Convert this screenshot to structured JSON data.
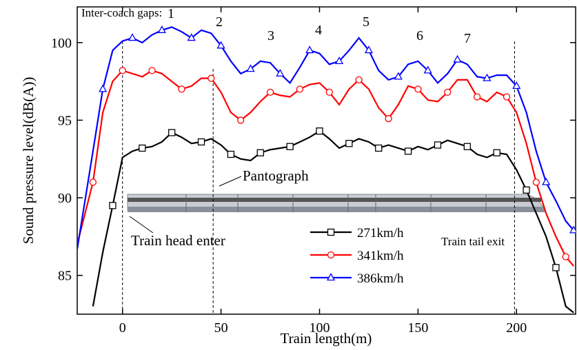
{
  "chart_data": {
    "type": "line",
    "x_label": "Train length(m)",
    "y_label": "Sound pressure level(dB(A))",
    "annotations": {
      "gaps": "Inter-coach gaps:",
      "gap_numbers": [
        "1",
        "2",
        "3",
        "4",
        "5",
        "6",
        "7"
      ],
      "pantograph": "Pantograph",
      "head": "Train head enter",
      "tail": "Train tail exit"
    },
    "x": [
      -23,
      -15,
      -10,
      -5,
      0,
      5,
      10,
      15,
      20,
      25,
      30,
      35,
      40,
      45,
      50,
      55,
      60,
      65,
      70,
      75,
      80,
      85,
      90,
      95,
      100,
      105,
      110,
      115,
      120,
      125,
      130,
      135,
      140,
      145,
      150,
      155,
      160,
      165,
      170,
      175,
      180,
      185,
      190,
      195,
      200,
      205,
      210,
      215,
      220,
      225,
      229
    ],
    "series": [
      {
        "name": "271km/h",
        "color": "#000000",
        "marker": "square",
        "values": [
          null,
          83.0,
          86.5,
          89.5,
          92.6,
          93.0,
          93.2,
          93.3,
          93.6,
          94.2,
          93.9,
          93.5,
          93.6,
          93.8,
          93.4,
          92.8,
          92.5,
          92.4,
          92.9,
          93.1,
          93.2,
          93.3,
          93.6,
          93.9,
          94.3,
          93.8,
          93.2,
          93.5,
          93.8,
          93.6,
          93.2,
          93.4,
          93.2,
          93.0,
          93.3,
          93.1,
          93.4,
          93.7,
          93.5,
          93.3,
          92.8,
          92.6,
          92.9,
          92.8,
          91.8,
          90.5,
          89.0,
          87.5,
          85.5,
          83.0,
          82.6
        ]
      },
      {
        "name": "341km/h",
        "color": "#ff0000",
        "marker": "circle",
        "values": [
          87.0,
          91.0,
          95.5,
          97.5,
          98.2,
          98.0,
          97.8,
          98.2,
          98.0,
          97.5,
          97.0,
          97.2,
          97.7,
          97.7,
          96.8,
          95.5,
          95.0,
          95.5,
          96.2,
          96.8,
          96.6,
          96.5,
          97.0,
          97.3,
          97.4,
          96.8,
          96.0,
          97.0,
          97.6,
          97.0,
          95.8,
          95.1,
          96.0,
          97.2,
          97.0,
          96.3,
          96.2,
          96.8,
          97.6,
          97.6,
          96.5,
          96.2,
          96.8,
          96.5,
          95.5,
          93.5,
          91.0,
          89.0,
          87.5,
          86.2,
          85.6
        ]
      },
      {
        "name": "386km/h",
        "color": "#0000ff",
        "marker": "triangle",
        "values": [
          86.7,
          93.0,
          97.0,
          99.5,
          100.1,
          100.3,
          100.0,
          100.5,
          100.8,
          101.0,
          100.7,
          100.3,
          100.8,
          100.6,
          99.8,
          98.8,
          98.0,
          98.3,
          98.8,
          98.7,
          98.0,
          97.4,
          98.4,
          99.5,
          99.3,
          98.6,
          98.8,
          99.5,
          100.3,
          99.5,
          98.2,
          97.6,
          97.8,
          98.6,
          98.8,
          98.2,
          97.4,
          98.0,
          98.9,
          98.6,
          97.8,
          97.7,
          97.9,
          97.9,
          97.2,
          95.5,
          93.0,
          91.0,
          89.8,
          88.5,
          87.9
        ]
      }
    ],
    "vlines": [
      0,
      46,
      199
    ],
    "xlim": [
      -23,
      230
    ],
    "ylim": [
      82.5,
      102.3
    ],
    "xticks": [
      0,
      50,
      100,
      150,
      200
    ],
    "yticks": [
      85,
      90,
      95,
      100
    ]
  }
}
